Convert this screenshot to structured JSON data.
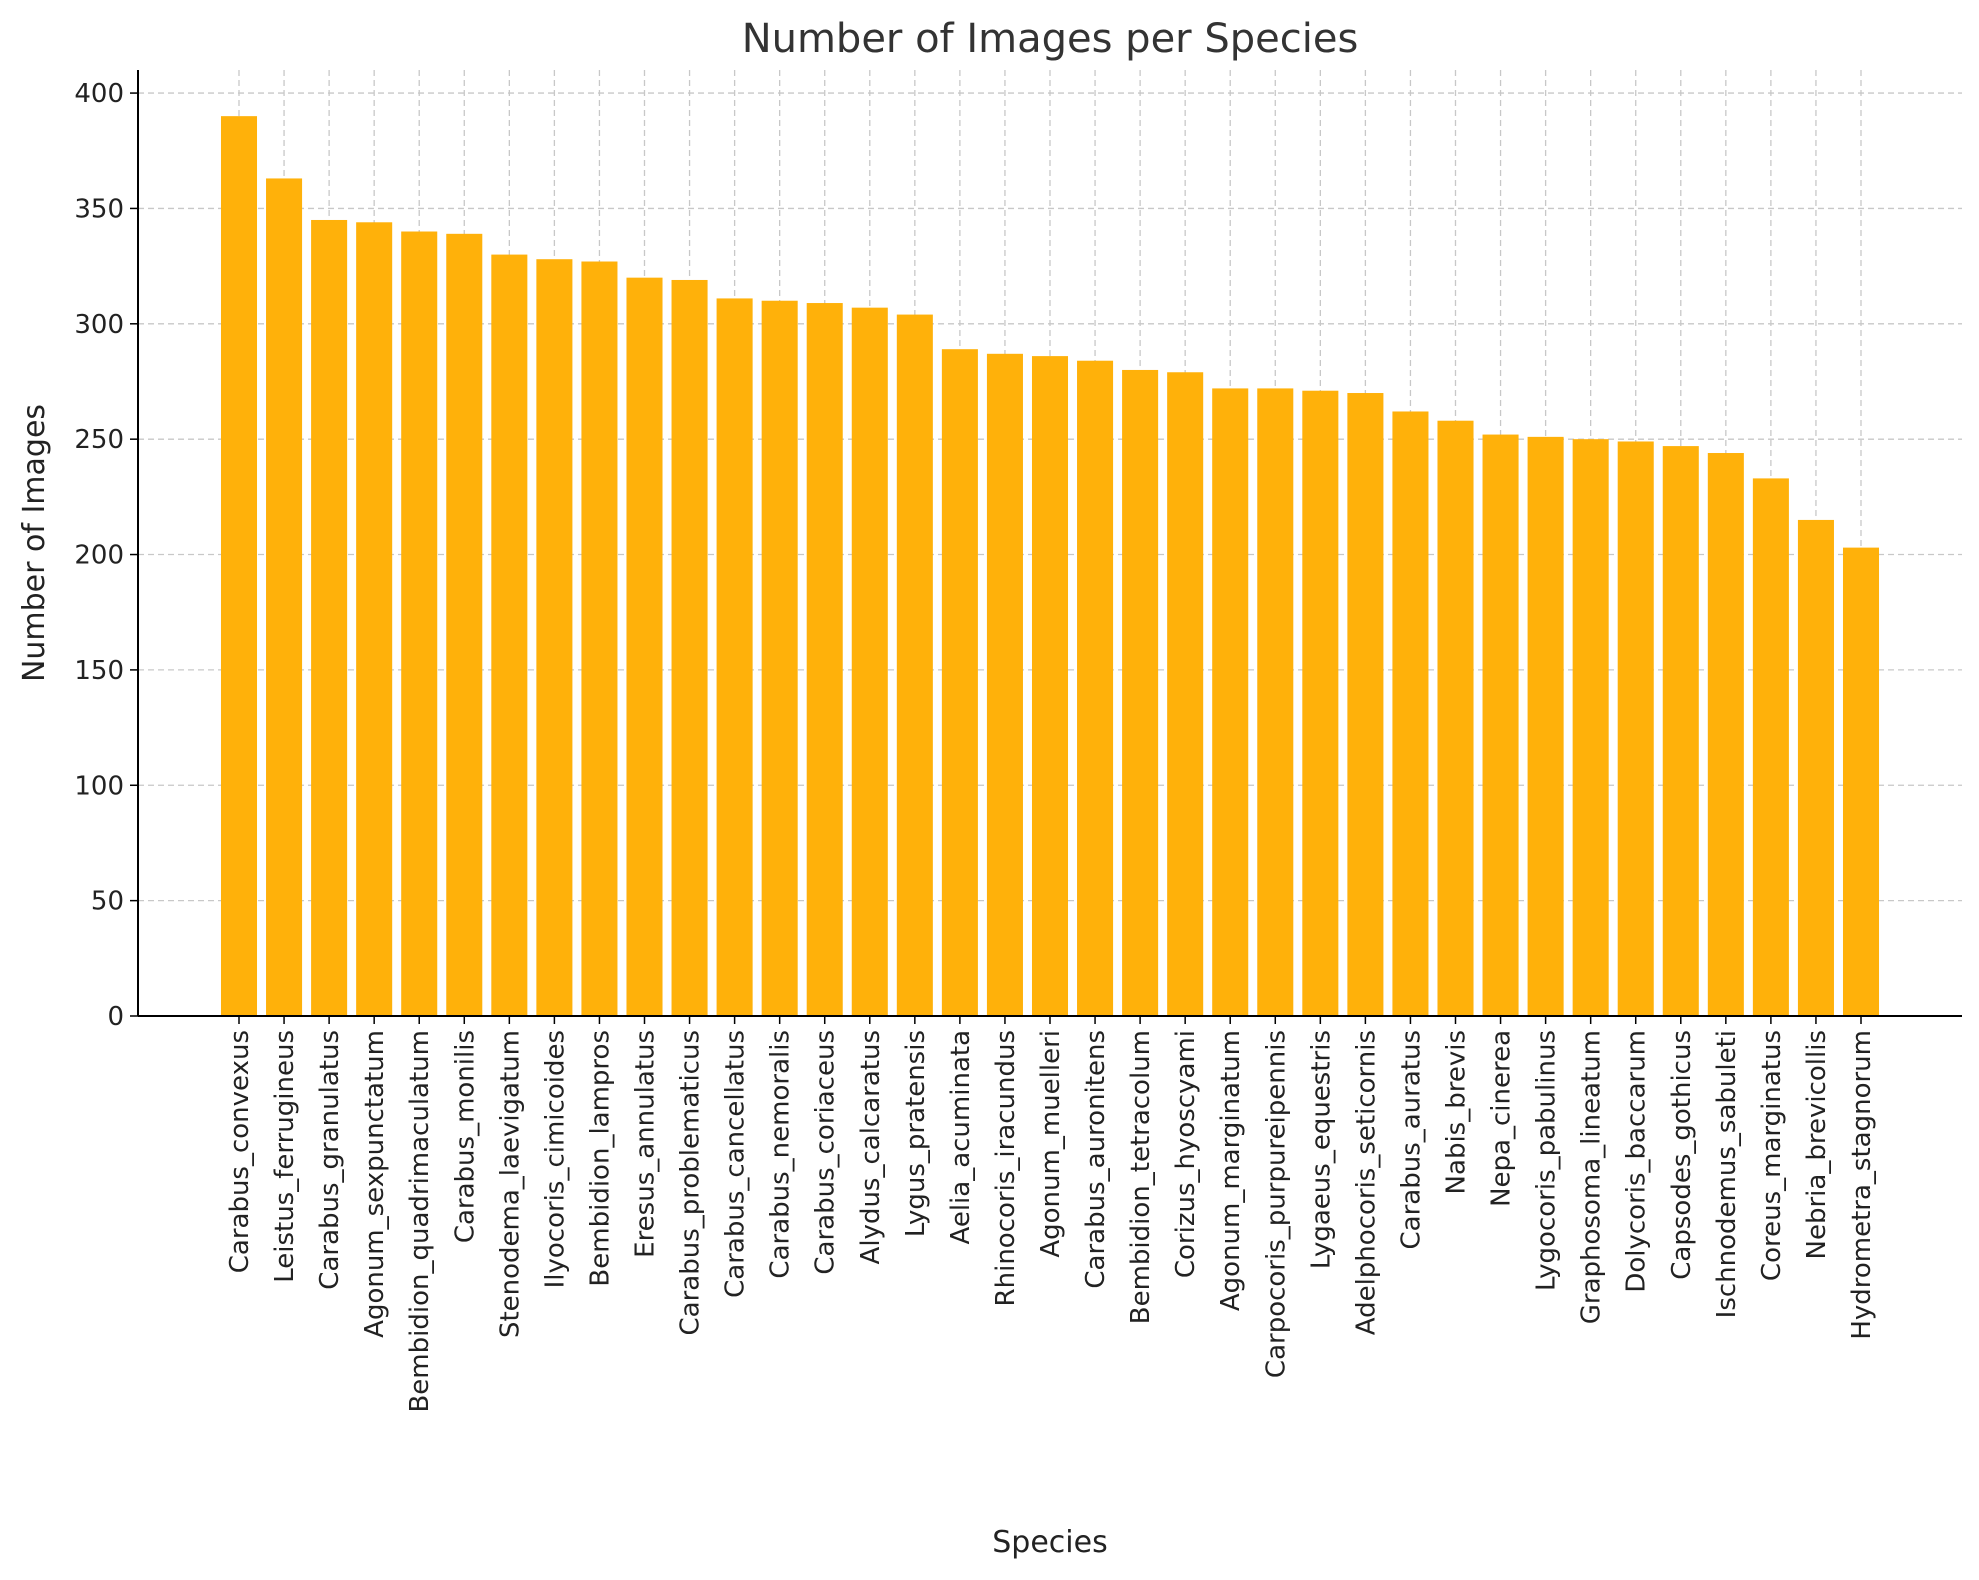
{
  "chart_data": {
    "type": "bar",
    "title": "Number of Images per Species",
    "xlabel": "Species",
    "ylabel": "Number of Images",
    "ylim": [
      0,
      410
    ],
    "yticks": [
      0,
      50,
      100,
      150,
      200,
      250,
      300,
      350,
      400
    ],
    "grid": true,
    "bar_color": "#FFB10A",
    "categories": [
      "Carabus_convexus",
      "Leistus_ferrugineus",
      "Carabus_granulatus",
      "Agonum_sexpunctatum",
      "Bembidion_quadrimaculatum",
      "Carabus_monilis",
      "Stenodema_laevigatum",
      "Ilyocoris_cimicoides",
      "Bembidion_lampros",
      "Eresus_annulatus",
      "Carabus_problematicus",
      "Carabus_cancellatus",
      "Carabus_nemoralis",
      "Carabus_coriaceus",
      "Alydus_calcaratus",
      "Lygus_pratensis",
      "Aelia_acuminata",
      "Rhinocoris_iracundus",
      "Agonum_muelleri",
      "Carabus_auronitens",
      "Bembidion_tetracolum",
      "Corizus_hyoscyami",
      "Agonum_marginatum",
      "Carpocoris_purpureipennis",
      "Lygaeus_equestris",
      "Adelphocoris_seticornis",
      "Carabus_auratus",
      "Nabis_brevis",
      "Nepa_cinerea",
      "Lygocoris_pabulinus",
      "Graphosoma_lineatum",
      "Dolycoris_baccarum",
      "Capsodes_gothicus",
      "Ischnodemus_sabuleti",
      "Coreus_marginatus",
      "Nebria_brevicollis",
      "Hydrometra_stagnorum"
    ],
    "values": [
      390,
      363,
      345,
      344,
      340,
      339,
      330,
      328,
      327,
      320,
      319,
      311,
      310,
      309,
      307,
      304,
      289,
      287,
      286,
      284,
      280,
      279,
      272,
      272,
      271,
      270,
      262,
      258,
      252,
      251,
      250,
      249,
      247,
      244,
      233,
      215,
      203
    ]
  }
}
